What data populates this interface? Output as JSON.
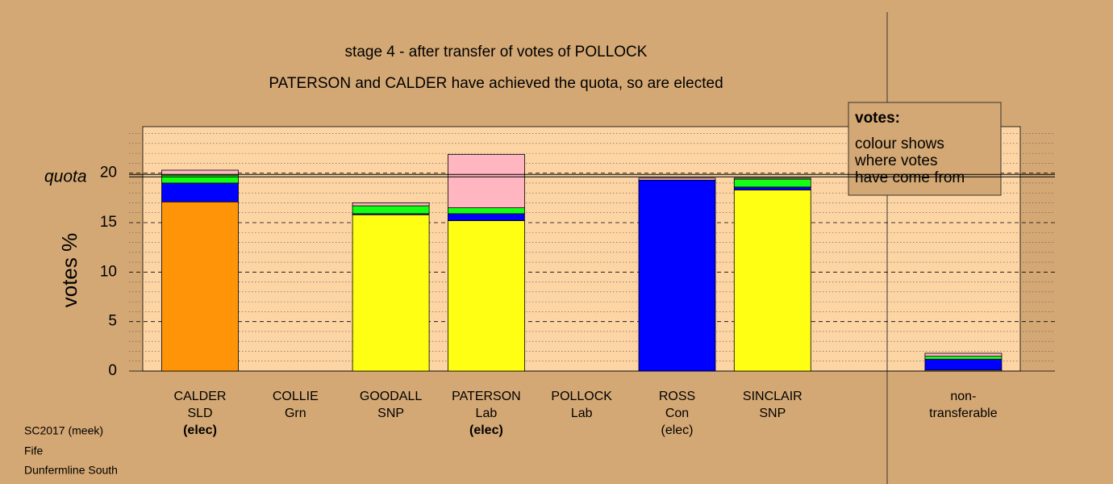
{
  "chart_data": {
    "type": "stacked_bar",
    "title": "stage 4 - after transfer of votes of POLLOCK",
    "subtitle": "PATERSON and CALDER have achieved the quota, so are elected",
    "ylabel": "votes %",
    "quota": {
      "value": 19.75,
      "label": "quota"
    },
    "categories": [
      [
        "CALDER",
        "SLD",
        "(elec)"
      ],
      [
        "COLLIE",
        "Grn"
      ],
      [
        "GOODALL",
        "SNP"
      ],
      [
        "PATERSON",
        "Lab",
        "(elec)"
      ],
      [
        "POLLOCK",
        "Lab"
      ],
      [
        "ROSS",
        "Con",
        "(elec)"
      ],
      [
        "SINCLAIR",
        "SNP"
      ],
      [
        "non-",
        "transferable"
      ]
    ],
    "series": [
      {
        "color": "#ff9408",
        "values": [
          17.1,
          0,
          0,
          0,
          0,
          0,
          0,
          0
        ]
      },
      {
        "color": "#ffff14",
        "values": [
          0,
          0,
          15.8,
          15.2,
          0,
          0,
          18.3,
          0.1
        ]
      },
      {
        "color": "#0000ff",
        "values": [
          1.9,
          0,
          0.1,
          0.7,
          0,
          19.3,
          0.3,
          1.1
        ]
      },
      {
        "color": "#14ff14",
        "values": [
          0.8,
          0,
          0.8,
          0.6,
          0,
          0,
          0.8,
          0.3
        ]
      },
      {
        "color": "#ffb6c1",
        "values": [
          0.5,
          0,
          0.3,
          5.4,
          0,
          0.2,
          0.1,
          0.3
        ]
      }
    ],
    "ylim": [
      0,
      24.7
    ],
    "yticks": [
      0,
      5,
      10,
      15,
      20
    ],
    "minor_yticks": [
      1,
      2,
      3,
      4,
      6,
      7,
      8,
      9,
      11,
      12,
      13,
      14,
      16,
      17,
      18,
      19,
      21,
      22,
      23,
      24
    ],
    "legend": {
      "title": "votes:",
      "lines": [
        "colour shows",
        "where votes",
        "have come from"
      ]
    },
    "footer": [
      "SC2017 (meek)",
      "Fife",
      "Dunfermline South"
    ]
  }
}
